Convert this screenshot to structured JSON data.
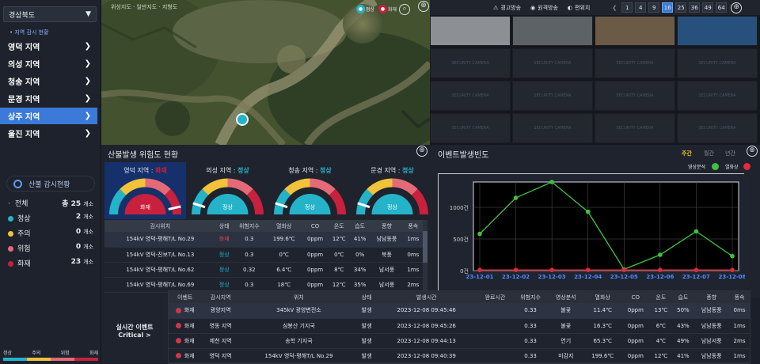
{
  "sidebar": {
    "region_select": "경상북도",
    "region_sub": "• 지역 감시 현황",
    "items": [
      {
        "label": "영덕 지역"
      },
      {
        "label": "의성 지역"
      },
      {
        "label": "청송 지역"
      },
      {
        "label": "문경 지역"
      },
      {
        "label": "상주 지역",
        "active": true
      },
      {
        "label": "울진 지역"
      }
    ],
    "watch_title": "산불 감시현황",
    "stats": [
      {
        "label": "전체",
        "value": "총 25",
        "unit": "개소",
        "color": "#ffffff"
      },
      {
        "label": "정상",
        "value": "2",
        "unit": "개소",
        "color": "#25b3c9"
      },
      {
        "label": "주의",
        "value": "0",
        "unit": "개소",
        "color": "#f1c23a"
      },
      {
        "label": "위험",
        "value": "0",
        "unit": "개소",
        "color": "#e56a78"
      },
      {
        "label": "화재",
        "value": "23",
        "unit": "개소",
        "color": "#c8203d"
      }
    ],
    "legend": [
      {
        "label": "정상",
        "color": "#25b3c9"
      },
      {
        "label": "주의",
        "color": "#f1c23a"
      },
      {
        "label": "위험",
        "color": "#e56a78"
      },
      {
        "label": "화재",
        "color": "#c8203d"
      }
    ]
  },
  "map": {
    "layer_labels": "위성지도  ·  일반지도  ·  지형도",
    "badges": [
      {
        "label": "정상",
        "color": "#25b3c9"
      },
      {
        "label": "화재",
        "color": "#c8203d"
      }
    ],
    "icons": [
      "camera-marker-icon",
      "zoom-icon"
    ]
  },
  "cctv": {
    "toolbar": [
      "경고방송",
      "원격방송",
      "편위치"
    ],
    "grid_options": [
      "1",
      "4",
      "9",
      "16",
      "25",
      "36",
      "49",
      "64"
    ],
    "grid_active": "16",
    "placeholder": "SECURITY CAMERA"
  },
  "risk": {
    "title": "산불발생 위험도 현황",
    "gauges": [
      {
        "region": "영덕 지역 : ",
        "status": "화재",
        "label": "화재",
        "level": 0.93,
        "color": "#c8203d"
      },
      {
        "region": "의성 지역 : ",
        "status": "정상",
        "label": "정상",
        "level": 0.1,
        "color": "#25b3c9"
      },
      {
        "region": "청송 지역 : ",
        "status": "정상",
        "label": "정상",
        "level": 0.1,
        "color": "#25b3c9"
      },
      {
        "region": "문경 지역 : ",
        "status": "정상",
        "label": "정상",
        "level": 0.1,
        "color": "#25b3c9"
      }
    ],
    "columns": [
      "감시위치",
      "상태",
      "위험지수",
      "열화상",
      "CO",
      "온도",
      "습도",
      "풍향",
      "풍속"
    ],
    "rows": [
      [
        "154kV 영덕-평해T/L No.29",
        "화재",
        "0.3",
        "199.6℃",
        "0ppm",
        "12℃",
        "41%",
        "남남동풍",
        "1ms"
      ],
      [
        "154kV 영덕-진보T/L No.13",
        "정상",
        "0.3",
        "0℃",
        "0ppm",
        "0℃",
        "0%",
        "북풍",
        "0ms"
      ],
      [
        "154kV 영덕-평해T/L No.62",
        "정상",
        "0.32",
        "6.4℃",
        "0ppm",
        "8℃",
        "34%",
        "남서풍",
        "1ms"
      ],
      [
        "154kV 영덕-평해T/L No.69",
        "정상",
        "0.3",
        "18℃",
        "0ppm",
        "12℃",
        "35%",
        "남서풍",
        "2ms"
      ]
    ]
  },
  "freq": {
    "title": "이벤트발생빈도",
    "tabs": [
      "주간",
      "월간",
      "년간"
    ],
    "legend": [
      {
        "label": "영상분석",
        "color": "#3fc23f"
      },
      {
        "label": "열화상",
        "color": "#e52b3a"
      }
    ]
  },
  "chart_data": {
    "type": "line",
    "categories": [
      "23-12-01",
      "23-12-02",
      "23-12-03",
      "23-12-04",
      "23-12-05",
      "23-12-06",
      "23-12-07",
      "23-12-08"
    ],
    "series": [
      {
        "name": "영상분석",
        "color": "#3fc23f",
        "values": [
          580,
          1150,
          1400,
          930,
          20,
          250,
          620,
          230
        ]
      },
      {
        "name": "열화상",
        "color": "#e52b3a",
        "values": [
          10,
          10,
          10,
          10,
          10,
          10,
          10,
          10
        ]
      }
    ],
    "ylim": [
      0,
      1400
    ],
    "yticks": [
      {
        "v": 0,
        "label": "0건"
      },
      {
        "v": 500,
        "label": "500건"
      },
      {
        "v": 1000,
        "label": "1000건"
      }
    ],
    "grid": true
  },
  "events": {
    "title_line1": "실시간 이벤트",
    "title_line2": "Critical >",
    "columns": [
      "이벤트",
      "감시지역",
      "위치",
      "상태",
      "발생시간",
      "완료시간",
      "위험지수",
      "영상분석",
      "열화상",
      "CO",
      "온도",
      "습도",
      "풍향",
      "풍속"
    ],
    "rows": [
      [
        "화재",
        "광양지역",
        "345kV 광양변전소",
        "발생",
        "2023-12-08 09:45:46",
        "",
        "0.33",
        "불꽃",
        "11.4℃",
        "0ppm",
        "13℃",
        "50%",
        "남남동풍",
        "0ms"
      ],
      [
        "화재",
        "영동 지역",
        "심봉산 기지국",
        "발생",
        "2023-12-08 09:45:26",
        "",
        "0.33",
        "불꽃",
        "16.3℃",
        "0ppm",
        "6℃",
        "43%",
        "남남동풍",
        "1ms"
      ],
      [
        "화재",
        "제천 지역",
        "송학 기지국",
        "발생",
        "2023-12-08 09:44:13",
        "",
        "0.33",
        "연기",
        "65.3℃",
        "0ppm",
        "4℃",
        "49%",
        "남남서풍",
        "2ms"
      ],
      [
        "화재",
        "영덕 지역",
        "154kV 영덕-평해T/L No.29",
        "발생",
        "2023-12-08 09:40:39",
        "",
        "0.33",
        "미감지",
        "199.6℃",
        "0ppm",
        "12℃",
        "41%",
        "남남동풍",
        "1ms"
      ]
    ]
  }
}
